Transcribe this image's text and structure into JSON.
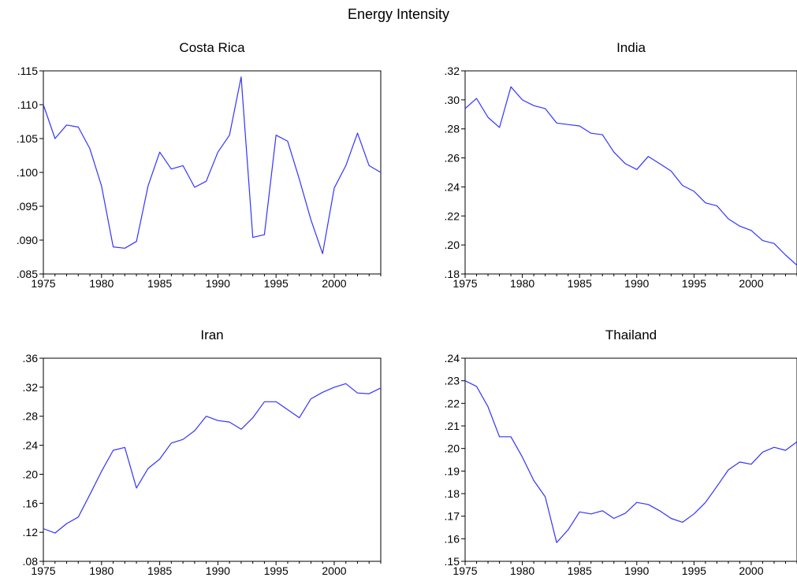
{
  "title": "Energy Intensity",
  "line_color": "#3333ff",
  "chart_data": [
    {
      "type": "line",
      "title": "Costa Rica",
      "x": [
        1975,
        1976,
        1977,
        1978,
        1979,
        1980,
        1981,
        1982,
        1983,
        1984,
        1985,
        1986,
        1987,
        1988,
        1989,
        1990,
        1991,
        1992,
        1993,
        1994,
        1995,
        1996,
        1997,
        1998,
        1999,
        2000,
        2001,
        2002,
        2003,
        2004
      ],
      "series": [
        {
          "values": [
            0.11,
            0.105,
            0.107,
            0.1067,
            0.1035,
            0.098,
            0.089,
            0.0888,
            0.0898,
            0.098,
            0.103,
            0.1005,
            0.101,
            0.0978,
            0.0987,
            0.103,
            0.1055,
            0.1141,
            0.0904,
            0.0908,
            0.1055,
            0.1046,
            0.099,
            0.093,
            0.088,
            0.0977,
            0.101,
            0.1058,
            0.101,
            0.1
          ]
        }
      ],
      "xlim": [
        1975,
        2004
      ],
      "ylim": [
        0.085,
        0.115
      ],
      "xticks": [
        "1975",
        "1980",
        "1985",
        "1990",
        "1995",
        "2000"
      ],
      "yticks": [
        ".085",
        ".090",
        ".095",
        ".100",
        ".105",
        ".110",
        ".115"
      ]
    },
    {
      "type": "line",
      "title": "India",
      "x": [
        1975,
        1976,
        1977,
        1978,
        1979,
        1980,
        1981,
        1982,
        1983,
        1984,
        1985,
        1986,
        1987,
        1988,
        1989,
        1990,
        1991,
        1992,
        1993,
        1994,
        1995,
        1996,
        1997,
        1998,
        1999,
        2000,
        2001,
        2002,
        2003,
        2004
      ],
      "series": [
        {
          "values": [
            0.294,
            0.301,
            0.288,
            0.281,
            0.309,
            0.3,
            0.296,
            0.294,
            0.284,
            0.283,
            0.282,
            0.277,
            0.276,
            0.264,
            0.256,
            0.252,
            0.261,
            0.256,
            0.251,
            0.241,
            0.237,
            0.229,
            0.227,
            0.218,
            0.213,
            0.21,
            0.203,
            0.201,
            0.193,
            0.186
          ]
        }
      ],
      "xlim": [
        1975,
        2004
      ],
      "ylim": [
        0.18,
        0.32
      ],
      "xticks": [
        "1975",
        "1980",
        "1985",
        "1990",
        "1995",
        "2000"
      ],
      "yticks": [
        ".18",
        ".20",
        ".22",
        ".24",
        ".26",
        ".28",
        ".30",
        ".32"
      ]
    },
    {
      "type": "line",
      "title": "Iran",
      "x": [
        1975,
        1976,
        1977,
        1978,
        1979,
        1980,
        1981,
        1982,
        1983,
        1984,
        1985,
        1986,
        1987,
        1988,
        1989,
        1990,
        1991,
        1992,
        1993,
        1994,
        1995,
        1996,
        1997,
        1998,
        1999,
        2000,
        2001,
        2002,
        2003,
        2004
      ],
      "series": [
        {
          "values": [
            0.125,
            0.119,
            0.132,
            0.141,
            0.172,
            0.204,
            0.233,
            0.237,
            0.181,
            0.208,
            0.221,
            0.243,
            0.248,
            0.26,
            0.28,
            0.274,
            0.272,
            0.262,
            0.278,
            0.3,
            0.3,
            0.289,
            0.278,
            0.304,
            0.313,
            0.32,
            0.325,
            0.312,
            0.311,
            0.319
          ]
        }
      ],
      "xlim": [
        1975,
        2004
      ],
      "ylim": [
        0.08,
        0.36
      ],
      "xticks": [
        "1975",
        "1980",
        "1985",
        "1990",
        "1995",
        "2000"
      ],
      "yticks": [
        ".08",
        ".12",
        ".16",
        ".20",
        ".24",
        ".28",
        ".32",
        ".36"
      ]
    },
    {
      "type": "line",
      "title": "Thailand",
      "x": [
        1975,
        1976,
        1977,
        1978,
        1979,
        1980,
        1981,
        1982,
        1983,
        1984,
        1985,
        1986,
        1987,
        1988,
        1989,
        1990,
        1991,
        1992,
        1993,
        1994,
        1995,
        1996,
        1997,
        1998,
        1999,
        2000,
        2001,
        2002,
        2003,
        2004
      ],
      "series": [
        {
          "values": [
            0.23,
            0.2275,
            0.2185,
            0.2052,
            0.2052,
            0.1962,
            0.1858,
            0.1786,
            0.1583,
            0.164,
            0.1719,
            0.171,
            0.1724,
            0.169,
            0.1713,
            0.1761,
            0.1752,
            0.1724,
            0.169,
            0.1673,
            0.171,
            0.1761,
            0.1832,
            0.1905,
            0.194,
            0.193,
            0.1984,
            0.2005,
            0.1992,
            0.203
          ]
        }
      ],
      "xlim": [
        1975,
        2004
      ],
      "ylim": [
        0.15,
        0.24
      ],
      "xticks": [
        "1975",
        "1980",
        "1985",
        "1990",
        "1995",
        "2000"
      ],
      "yticks": [
        ".15",
        ".16",
        ".17",
        ".18",
        ".19",
        ".20",
        ".21",
        ".22",
        ".23",
        ".24"
      ]
    }
  ]
}
